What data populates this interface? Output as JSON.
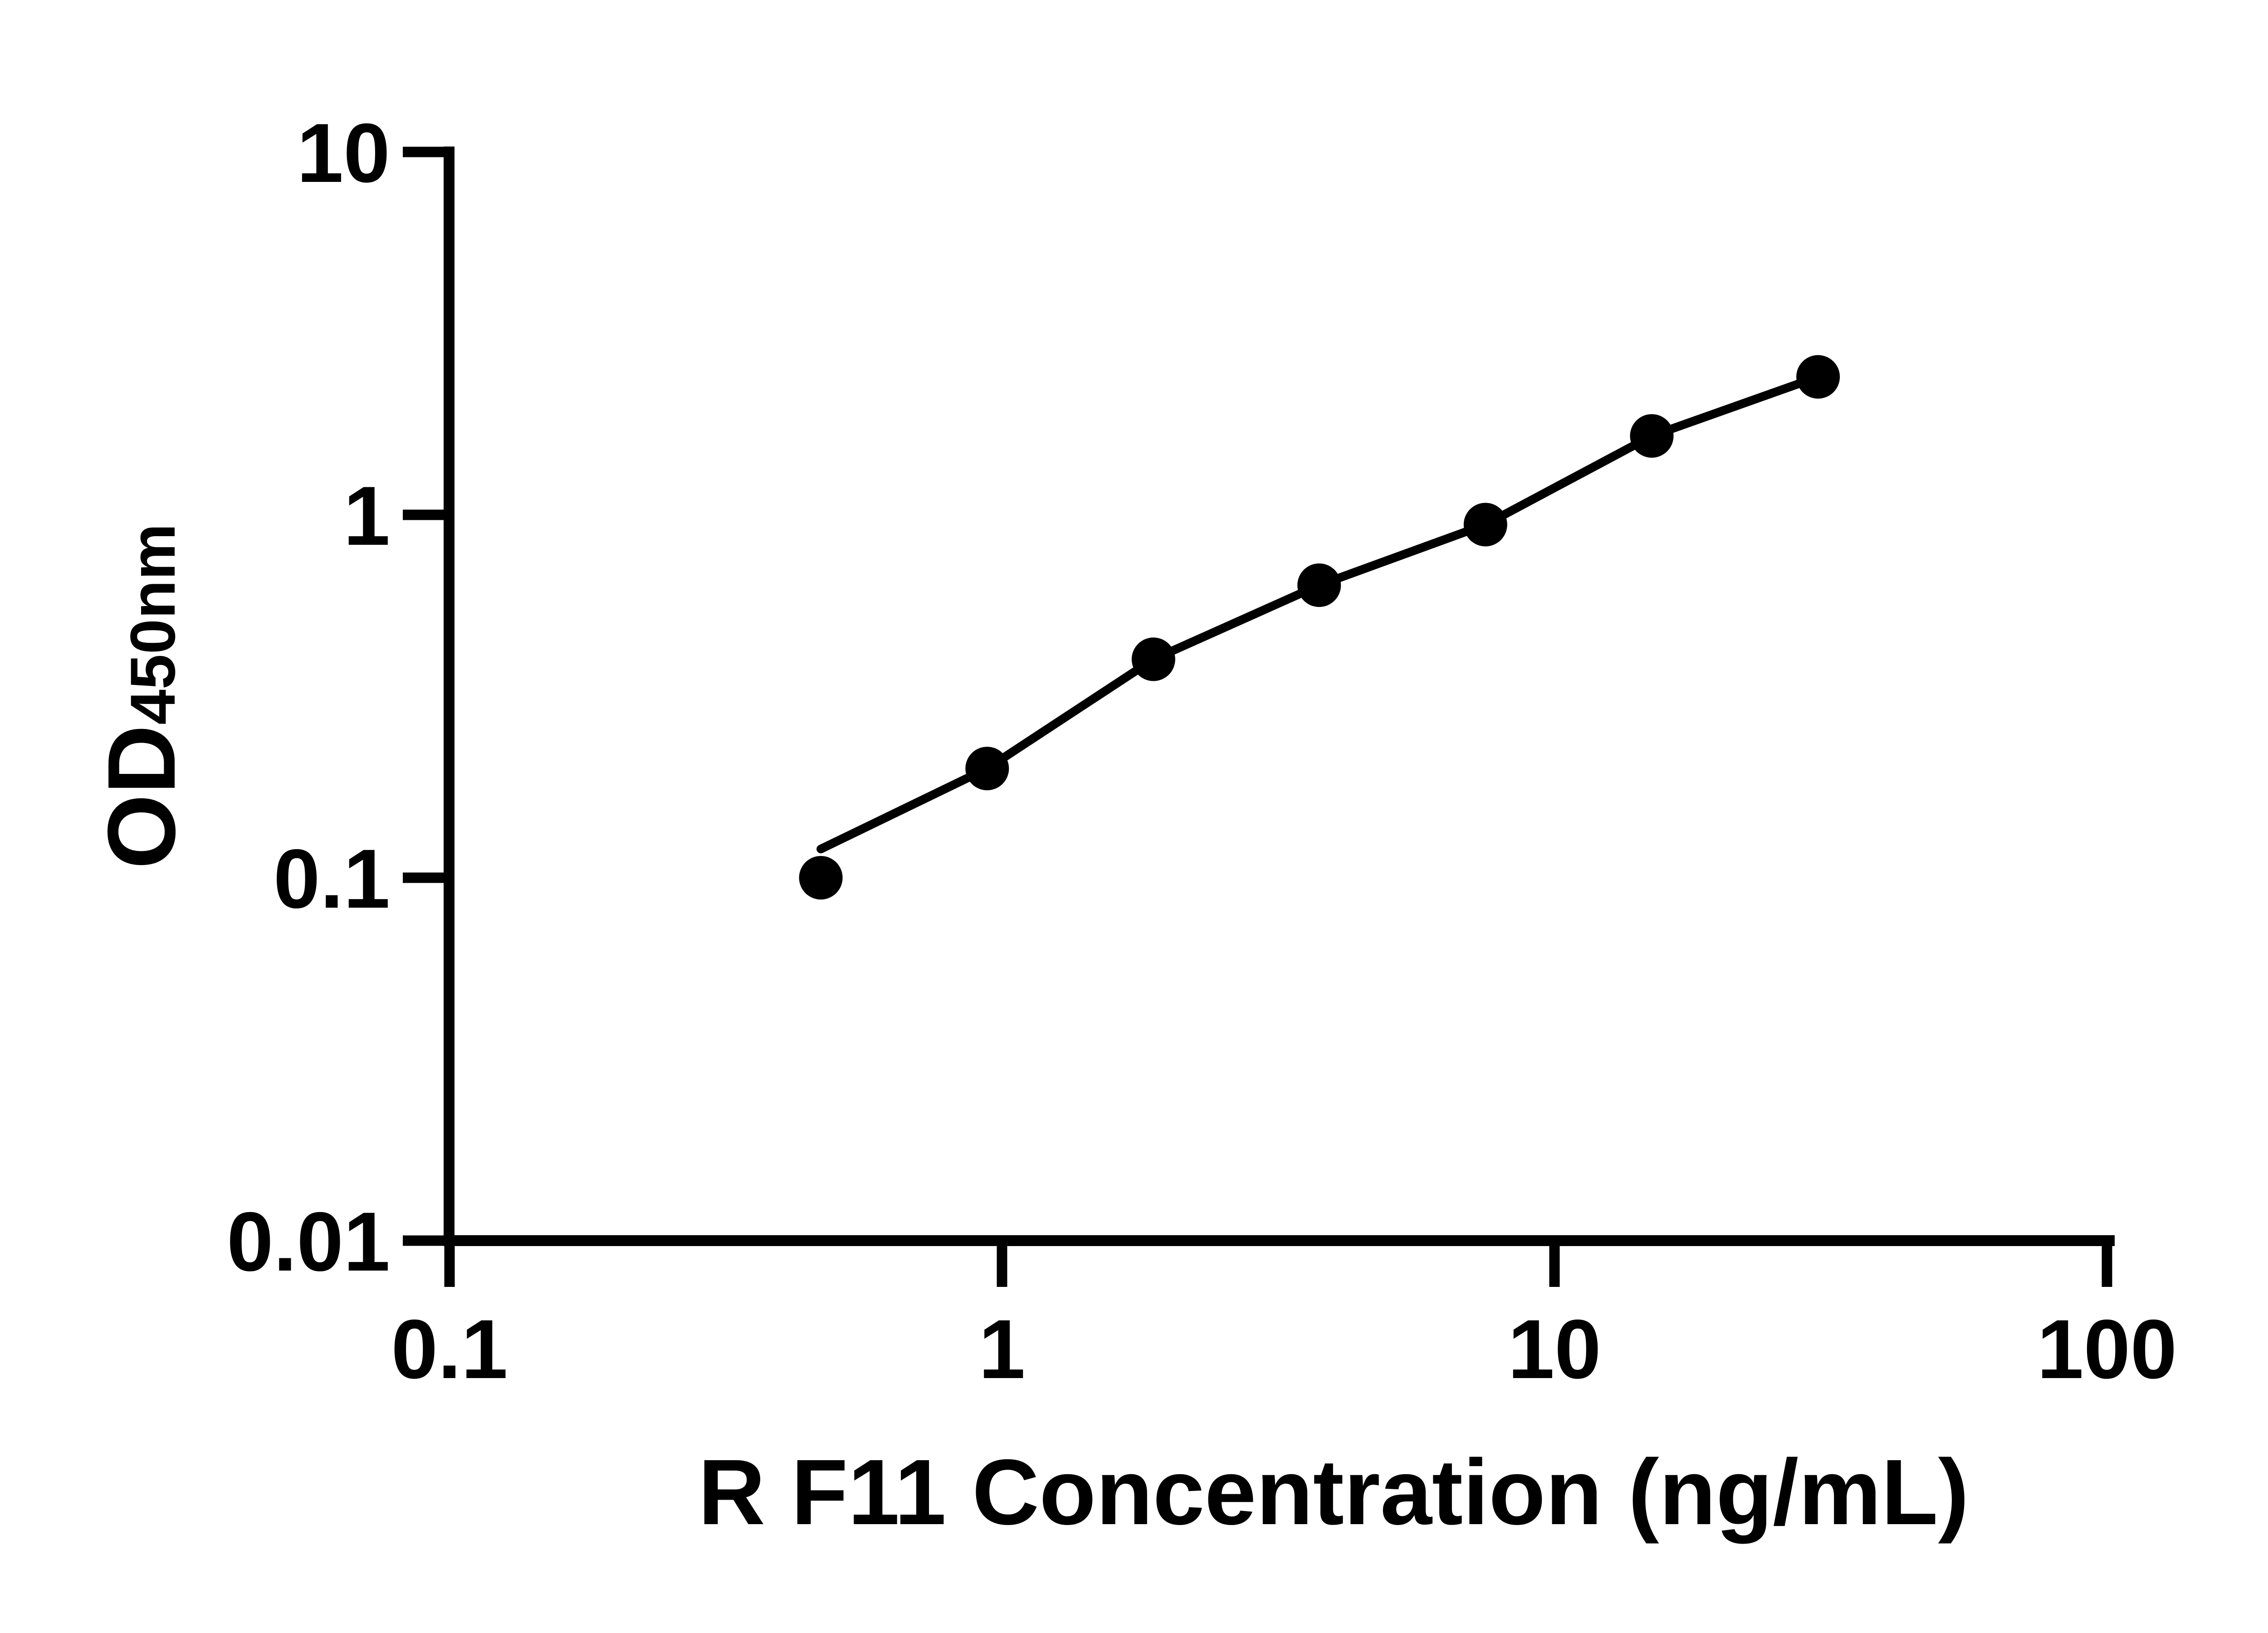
{
  "chart_data": {
    "type": "scatter",
    "title": "",
    "xlabel": "R F11 Concentration (ng/mL)",
    "ylabel": "OD450nm",
    "ylabel_main": "OD",
    "ylabel_sub": "450nm",
    "x_scale": "log",
    "y_scale": "log",
    "xlim": [
      0.1,
      100
    ],
    "ylim": [
      0.01,
      10
    ],
    "grid": false,
    "legend": false,
    "x": [
      0.47,
      0.94,
      1.88,
      3.75,
      7.5,
      15,
      30
    ],
    "y": [
      0.1,
      0.2,
      0.4,
      0.64,
      0.94,
      1.65,
      2.4
    ],
    "fit_line": {
      "description": "fitted standard curve, starts slightly above first data point and passes through remaining points",
      "start": {
        "x": 0.47,
        "y": 0.12
      }
    },
    "x_ticks": {
      "values": [
        0.1,
        1,
        10,
        100
      ],
      "labels": [
        "0.1",
        "1",
        "10",
        "100"
      ]
    },
    "y_ticks": {
      "values": [
        0.01,
        0.1,
        1,
        10
      ],
      "labels": [
        "0.01",
        "0.1",
        "1",
        "10"
      ]
    },
    "colors": {
      "foreground": "#000000",
      "background": "#ffffff"
    }
  }
}
